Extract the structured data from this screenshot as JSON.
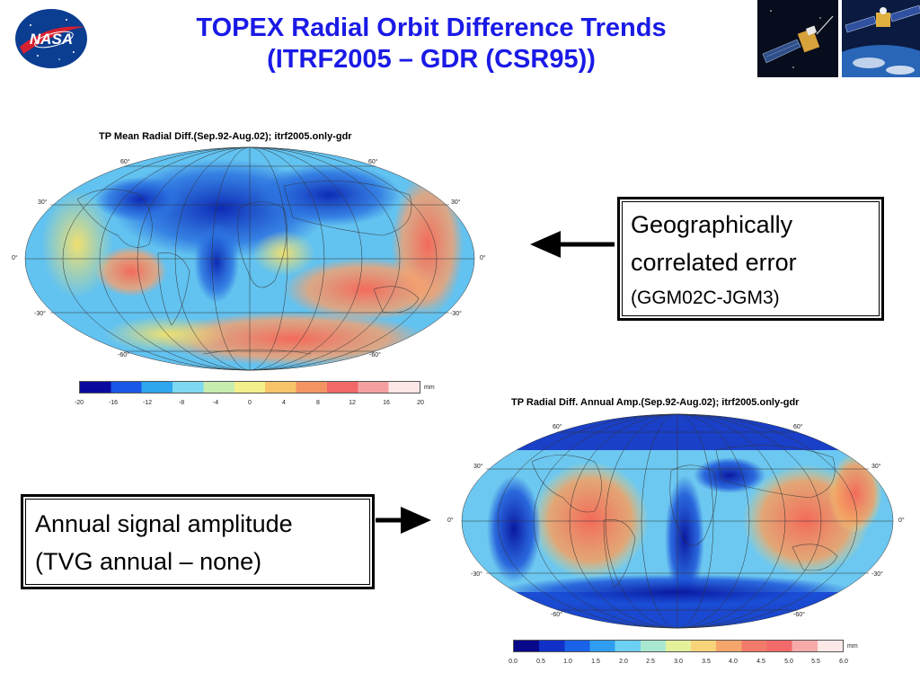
{
  "title": {
    "line1": "TOPEX Radial Orbit Difference Trends",
    "line2": "(ITRF2005 – GDR (CSR95))"
  },
  "logo": {
    "text": "NASA",
    "icon": "nasa-meatball-logo",
    "color": "#0b3d91"
  },
  "map_mean": {
    "title": "TP Mean Radial Diff.(Sep.92-Aug.02); itrf2005.only-gdr",
    "lat_labels": [
      "60°",
      "30°",
      "0°",
      "-30°",
      "-60°"
    ],
    "colorbar": {
      "unit": "mm",
      "ticks": [
        "-20",
        "-16",
        "-12",
        "-8",
        "-4",
        "0",
        "4",
        "8",
        "12",
        "16",
        "20"
      ],
      "range": [
        -20,
        20
      ],
      "colors": [
        "#0a0a9e",
        "#1a57e6",
        "#2fa6ee",
        "#7dd8f0",
        "#c8ecb0",
        "#f3ef8a",
        "#f7c46a",
        "#f39462",
        "#f06868",
        "#f5a0a0",
        "#fde6e6"
      ]
    }
  },
  "map_amp": {
    "title": "TP Radial Diff. Annual Amp.(Sep.92-Aug.02); itrf2005.only-gdr",
    "lat_labels": [
      "60°",
      "30°",
      "0°",
      "-30°",
      "-60°"
    ],
    "colorbar": {
      "unit": "mm",
      "ticks": [
        "0.0",
        "0.5",
        "1.0",
        "1.5",
        "2.0",
        "2.5",
        "3.0",
        "3.5",
        "4.0",
        "4.5",
        "5.0",
        "5.5",
        "6.0"
      ],
      "range": [
        0,
        6
      ],
      "colors": [
        "#08088a",
        "#1030c8",
        "#1a62e8",
        "#2f9ef0",
        "#6cd0f2",
        "#a8e8d0",
        "#e4f09a",
        "#f7d47a",
        "#f6a66a",
        "#f27a6a",
        "#f26a6a",
        "#f6aaaa",
        "#fde8e8"
      ]
    }
  },
  "note_geo": {
    "line1": "Geographically",
    "line2": "correlated error",
    "line3": "(GGM02C-JGM3)"
  },
  "note_annual": {
    "line1": "Annual signal amplitude",
    "line2": "(TVG annual – none)"
  }
}
